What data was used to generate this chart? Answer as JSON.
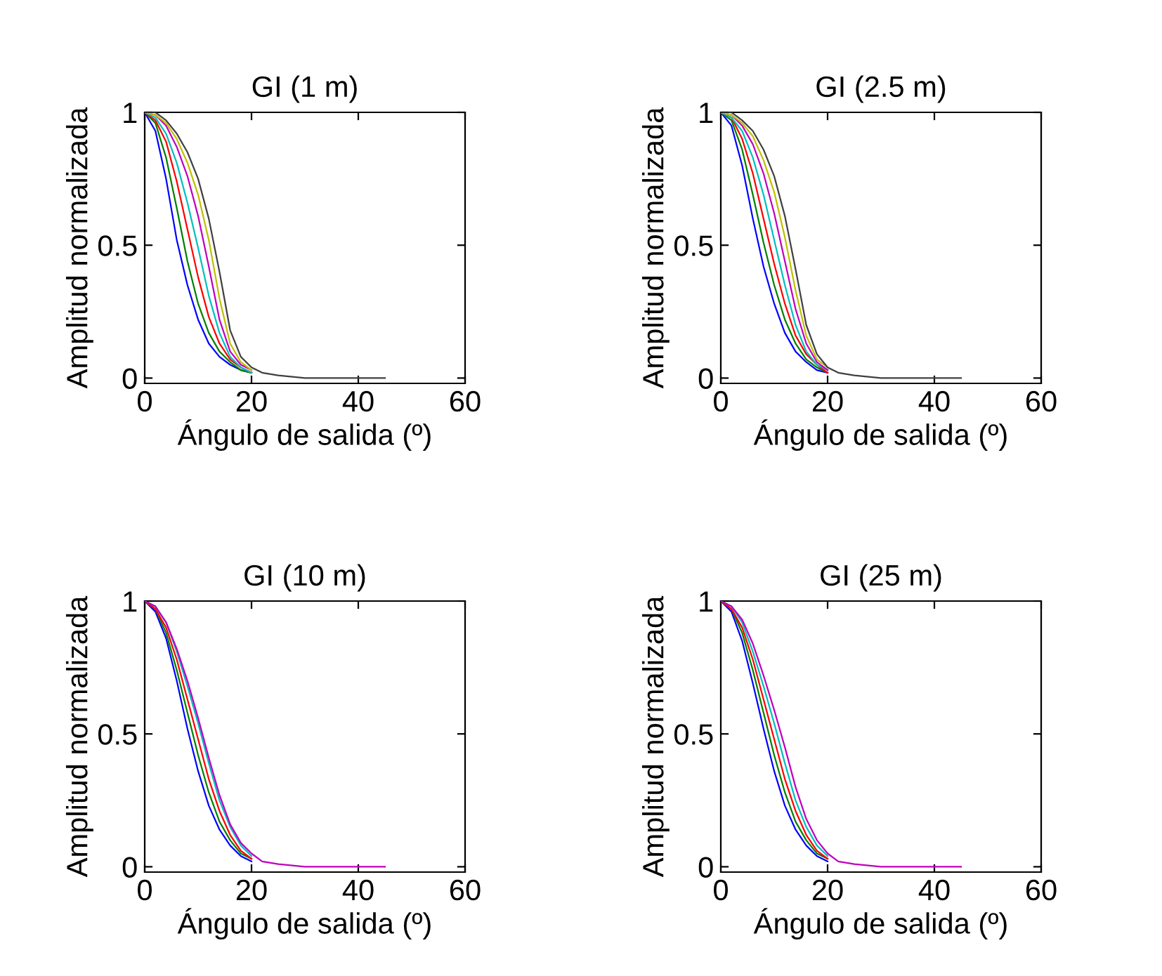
{
  "chart_data": [
    {
      "type": "line",
      "title": "GI (1 m)",
      "xlabel": "Ángulo de salida (º)",
      "ylabel": "Amplitud normalizada",
      "xlim": [
        0,
        60
      ],
      "ylim": [
        -0.02,
        1
      ],
      "xticks": [
        0,
        20,
        40,
        60
      ],
      "yticks": [
        0,
        0.5,
        1
      ],
      "line_style": "solid",
      "marker": "none",
      "x": [
        0,
        2,
        4,
        6,
        8,
        10,
        12,
        14,
        16,
        18,
        20,
        22,
        25,
        30,
        35,
        40,
        45
      ],
      "series": [
        {
          "color": "#0000ff",
          "values": [
            1,
            0.93,
            0.75,
            0.52,
            0.35,
            0.22,
            0.13,
            0.08,
            0.05,
            0.03,
            0.02,
            null,
            null,
            null,
            null,
            null,
            null
          ]
        },
        {
          "color": "#008000",
          "values": [
            1,
            0.96,
            0.83,
            0.64,
            0.44,
            0.28,
            0.17,
            0.1,
            0.06,
            0.03,
            0.02,
            null,
            null,
            null,
            null,
            null,
            null
          ]
        },
        {
          "color": "#ff0000",
          "values": [
            1,
            0.97,
            0.89,
            0.74,
            0.56,
            0.38,
            0.23,
            0.13,
            0.07,
            0.04,
            0.02,
            null,
            null,
            null,
            null,
            null,
            null
          ]
        },
        {
          "color": "#00bfbf",
          "values": [
            1,
            0.98,
            0.92,
            0.81,
            0.66,
            0.49,
            0.31,
            0.17,
            0.08,
            0.04,
            0.02,
            null,
            null,
            null,
            null,
            null,
            null
          ]
        },
        {
          "color": "#bf00bf",
          "values": [
            1,
            0.99,
            0.95,
            0.87,
            0.76,
            0.61,
            0.42,
            0.22,
            0.1,
            0.05,
            0.03,
            null,
            null,
            null,
            null,
            null,
            null
          ]
        },
        {
          "color": "#bfbf00",
          "values": [
            1,
            0.99,
            0.96,
            0.9,
            0.81,
            0.69,
            0.52,
            0.3,
            0.13,
            0.06,
            0.03,
            null,
            null,
            null,
            null,
            null,
            null
          ]
        },
        {
          "color": "#404040",
          "values": [
            1,
            1,
            0.97,
            0.92,
            0.85,
            0.75,
            0.6,
            0.4,
            0.18,
            0.08,
            0.04,
            0.02,
            0.01,
            0,
            0,
            0,
            0
          ]
        }
      ]
    },
    {
      "type": "line",
      "title": "GI (2.5 m)",
      "xlabel": "Ángulo de salida (º)",
      "ylabel": "Amplitud normalizada",
      "xlim": [
        0,
        60
      ],
      "ylim": [
        -0.02,
        1
      ],
      "xticks": [
        0,
        20,
        40,
        60
      ],
      "yticks": [
        0,
        0.5,
        1
      ],
      "line_style": "solid",
      "marker": "none",
      "x": [
        0,
        2,
        4,
        6,
        8,
        10,
        12,
        14,
        16,
        18,
        20,
        22,
        25,
        30,
        35,
        40,
        45
      ],
      "series": [
        {
          "color": "#0000ff",
          "values": [
            1,
            0.95,
            0.8,
            0.6,
            0.42,
            0.28,
            0.17,
            0.1,
            0.06,
            0.03,
            0.02,
            null,
            null,
            null,
            null,
            null,
            null
          ]
        },
        {
          "color": "#008000",
          "values": [
            1,
            0.97,
            0.86,
            0.69,
            0.51,
            0.35,
            0.22,
            0.13,
            0.07,
            0.04,
            0.02,
            null,
            null,
            null,
            null,
            null,
            null
          ]
        },
        {
          "color": "#ff0000",
          "values": [
            1,
            0.98,
            0.9,
            0.77,
            0.6,
            0.43,
            0.28,
            0.16,
            0.09,
            0.05,
            0.02,
            null,
            null,
            null,
            null,
            null,
            null
          ]
        },
        {
          "color": "#00bfbf",
          "values": [
            1,
            0.98,
            0.93,
            0.83,
            0.69,
            0.52,
            0.35,
            0.2,
            0.1,
            0.05,
            0.03,
            null,
            null,
            null,
            null,
            null,
            null
          ]
        },
        {
          "color": "#bf00bf",
          "values": [
            1,
            0.99,
            0.95,
            0.88,
            0.77,
            0.62,
            0.44,
            0.26,
            0.13,
            0.06,
            0.03,
            null,
            null,
            null,
            null,
            null,
            null
          ]
        },
        {
          "color": "#bfbf00",
          "values": [
            1,
            0.99,
            0.96,
            0.91,
            0.82,
            0.7,
            0.53,
            0.33,
            0.16,
            0.07,
            0.04,
            null,
            null,
            null,
            null,
            null,
            null
          ]
        },
        {
          "color": "#404040",
          "values": [
            1,
            1,
            0.97,
            0.93,
            0.86,
            0.76,
            0.61,
            0.41,
            0.2,
            0.09,
            0.04,
            0.02,
            0.01,
            0,
            0,
            0,
            0
          ]
        }
      ]
    },
    {
      "type": "line",
      "title": "GI (10 m)",
      "xlabel": "Ángulo de salida (º)",
      "ylabel": "Amplitud normalizada",
      "xlim": [
        0,
        60
      ],
      "ylim": [
        -0.02,
        1
      ],
      "xticks": [
        0,
        20,
        40,
        60
      ],
      "yticks": [
        0,
        0.5,
        1
      ],
      "line_style": "solid",
      "marker": "none",
      "x": [
        0,
        2,
        4,
        6,
        8,
        10,
        12,
        14,
        16,
        18,
        20,
        22,
        25,
        30,
        35,
        40,
        45
      ],
      "series": [
        {
          "color": "#0000ff",
          "values": [
            1,
            0.96,
            0.86,
            0.7,
            0.52,
            0.36,
            0.23,
            0.14,
            0.08,
            0.04,
            0.02,
            null,
            null,
            null,
            null,
            null,
            null
          ]
        },
        {
          "color": "#008000",
          "values": [
            1,
            0.97,
            0.88,
            0.74,
            0.58,
            0.42,
            0.28,
            0.17,
            0.1,
            0.05,
            0.03,
            null,
            null,
            null,
            null,
            null,
            null
          ]
        },
        {
          "color": "#ff0000",
          "values": [
            1,
            0.97,
            0.9,
            0.78,
            0.63,
            0.48,
            0.33,
            0.21,
            0.12,
            0.06,
            0.03,
            null,
            null,
            null,
            null,
            null,
            null
          ]
        },
        {
          "color": "#00bfbf",
          "values": [
            1,
            0.98,
            0.92,
            0.81,
            0.68,
            0.54,
            0.39,
            0.25,
            0.15,
            0.08,
            0.04,
            null,
            null,
            null,
            null,
            null,
            null
          ]
        },
        {
          "color": "#bf00bf",
          "values": [
            1,
            0.98,
            0.92,
            0.82,
            0.7,
            0.56,
            0.41,
            0.27,
            0.16,
            0.09,
            0.05,
            0.02,
            0.01,
            0,
            0,
            0,
            0
          ]
        }
      ]
    },
    {
      "type": "line",
      "title": "GI (25 m)",
      "xlabel": "Ángulo de salida (º)",
      "ylabel": "Amplitud normalizada",
      "xlim": [
        0,
        60
      ],
      "ylim": [
        -0.02,
        1
      ],
      "xticks": [
        0,
        20,
        40,
        60
      ],
      "yticks": [
        0,
        0.5,
        1
      ],
      "line_style": "solid",
      "marker": "none",
      "x": [
        0,
        2,
        4,
        6,
        8,
        10,
        12,
        14,
        16,
        18,
        20,
        22,
        25,
        30,
        35,
        40,
        45
      ],
      "series": [
        {
          "color": "#0000ff",
          "values": [
            1,
            0.96,
            0.85,
            0.69,
            0.52,
            0.36,
            0.23,
            0.14,
            0.08,
            0.04,
            0.02,
            null,
            null,
            null,
            null,
            null,
            null
          ]
        },
        {
          "color": "#008000",
          "values": [
            1,
            0.97,
            0.88,
            0.74,
            0.58,
            0.42,
            0.28,
            0.17,
            0.1,
            0.05,
            0.03,
            null,
            null,
            null,
            null,
            null,
            null
          ]
        },
        {
          "color": "#ff0000",
          "values": [
            1,
            0.97,
            0.9,
            0.78,
            0.63,
            0.48,
            0.33,
            0.21,
            0.12,
            0.06,
            0.03,
            null,
            null,
            null,
            null,
            null,
            null
          ]
        },
        {
          "color": "#00bfbf",
          "values": [
            1,
            0.98,
            0.92,
            0.81,
            0.68,
            0.54,
            0.39,
            0.25,
            0.15,
            0.08,
            0.04,
            null,
            null,
            null,
            null,
            null,
            null
          ]
        },
        {
          "color": "#bf00bf",
          "values": [
            1,
            0.98,
            0.93,
            0.84,
            0.72,
            0.59,
            0.45,
            0.3,
            0.18,
            0.1,
            0.05,
            0.02,
            0.01,
            0,
            0,
            0,
            0
          ]
        }
      ]
    }
  ]
}
